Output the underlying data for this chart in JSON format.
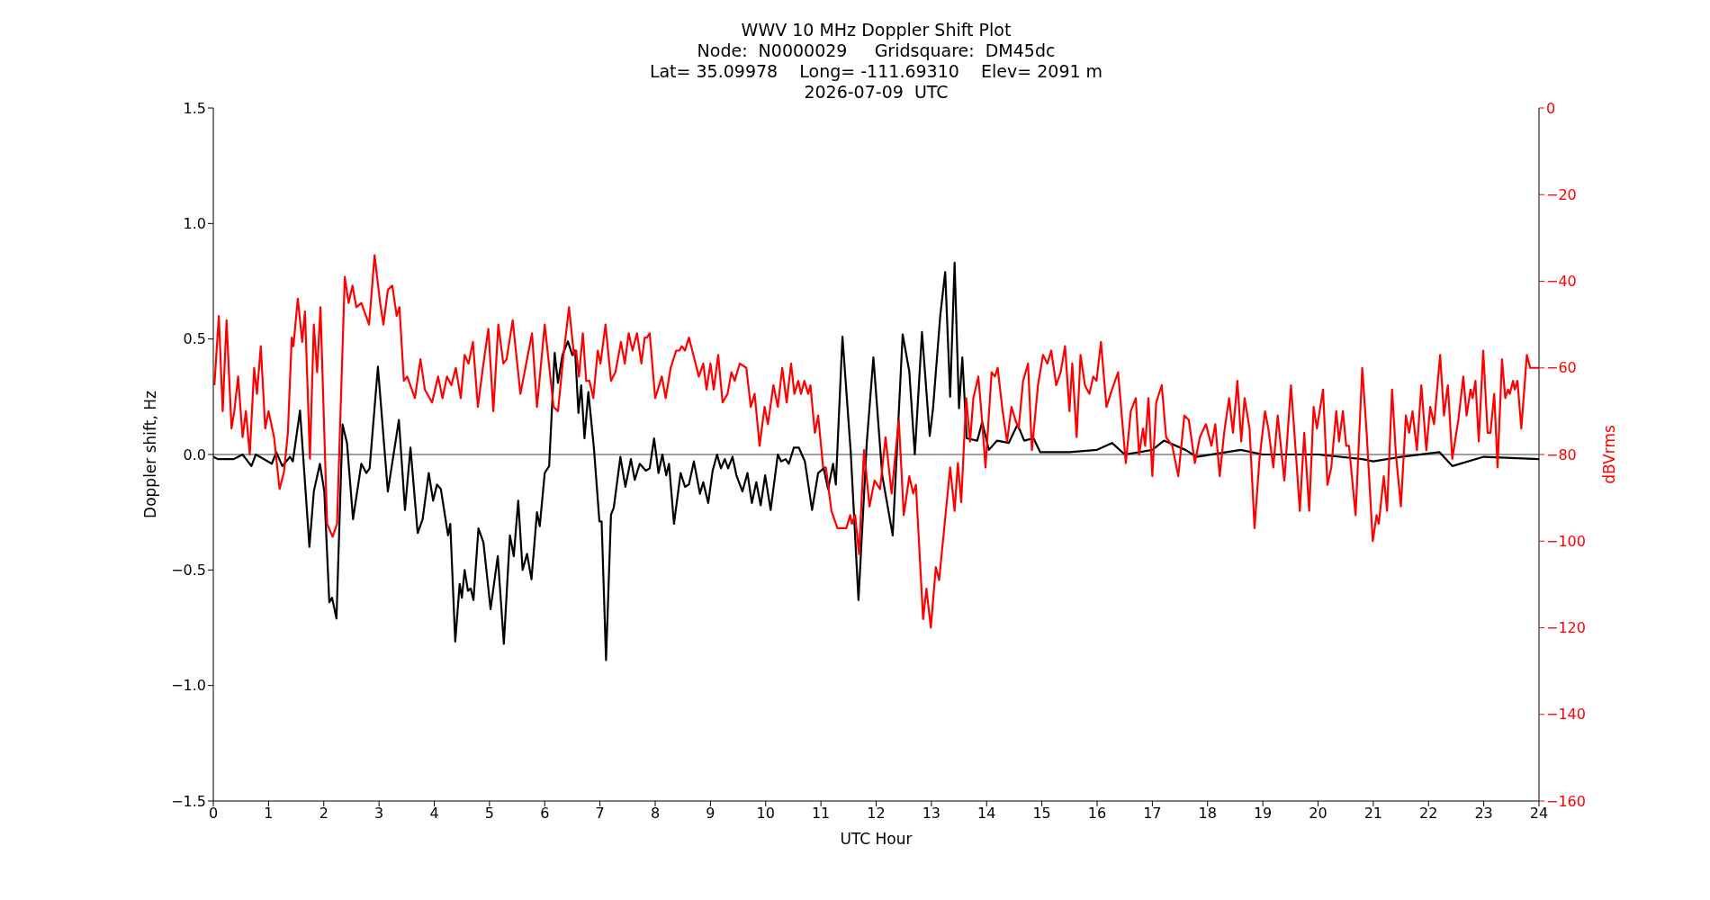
{
  "chart_data": {
    "type": "line",
    "title": "WWV 10 MHz Doppler Shift Plot\nNode:  N0000029     Gridsquare:  DM45dc\nLat= 35.09978    Long= -111.69310    Elev= 2091 m\n2026-07-09  UTC",
    "xlabel": "UTC Hour",
    "ylabel": "Doppler shift, Hz",
    "y2label": "dBVrms",
    "xlim": [
      0,
      24
    ],
    "xticks": [
      0,
      1,
      2,
      3,
      4,
      5,
      6,
      7,
      8,
      9,
      10,
      11,
      12,
      13,
      14,
      15,
      16,
      17,
      18,
      19,
      20,
      21,
      22,
      23,
      24
    ],
    "ylim": [
      -1.5,
      1.5
    ],
    "yticks": [
      {
        "value": -1.5,
        "label": "−1.5"
      },
      {
        "value": -1,
        "label": "−1.0"
      },
      {
        "value": -0.5,
        "label": "−0.5"
      },
      {
        "value": 0,
        "label": "0.0"
      },
      {
        "value": 0.5,
        "label": "0.5"
      },
      {
        "value": 1,
        "label": "1.0"
      },
      {
        "value": 1.5,
        "label": "1.5"
      }
    ],
    "y2lim": [
      -160,
      0
    ],
    "y2ticks": [
      {
        "value": -160,
        "label": "−160"
      },
      {
        "value": -140,
        "label": "−140"
      },
      {
        "value": -120,
        "label": "−120"
      },
      {
        "value": -100,
        "label": "−100"
      },
      {
        "value": -80,
        "label": "−80"
      },
      {
        "value": -60,
        "label": "−60"
      },
      {
        "value": -40,
        "label": "−40"
      },
      {
        "value": -20,
        "label": "−20"
      },
      0
    ],
    "ref_lines": [
      {
        "axis": "y",
        "value": 0,
        "color": "#808080"
      }
    ],
    "series": [
      {
        "color": "#000000",
        "x": [
          0,
          0.08,
          0.37,
          0.53,
          0.69,
          0.77,
          1.06,
          1.14,
          1.25,
          1.39,
          1.44,
          1.57,
          1.74,
          1.82,
          1.93,
          2.01,
          2.1,
          2.15,
          2.23,
          2.34,
          2.42,
          2.53,
          2.68,
          2.77,
          2.83,
          2.98,
          3.16,
          3.36,
          3.47,
          3.57,
          3.7,
          3.79,
          3.9,
          3.98,
          4.05,
          4.12,
          4.25,
          4.29,
          4.38,
          4.46,
          4.5,
          4.55,
          4.61,
          4.66,
          4.71,
          4.8,
          4.89,
          5.02,
          5.15,
          5.26,
          5.37,
          5.44,
          5.52,
          5.6,
          5.68,
          5.76,
          5.86,
          5.91,
          6.0,
          6.08,
          6.18,
          6.24,
          6.32,
          6.42,
          6.5,
          6.55,
          6.61,
          6.66,
          6.72,
          6.79,
          6.89,
          6.99,
          7.03,
          7.11,
          7.2,
          7.25,
          7.37,
          7.46,
          7.56,
          7.63,
          7.72,
          7.83,
          7.9,
          7.98,
          8.06,
          8.13,
          8.2,
          8.25,
          8.34,
          8.46,
          8.54,
          8.61,
          8.7,
          8.81,
          8.87,
          8.96,
          9.04,
          9.12,
          9.19,
          9.26,
          9.32,
          9.4,
          9.47,
          9.58,
          9.67,
          9.75,
          9.83,
          9.91,
          9.99,
          10.09,
          10.22,
          10.28,
          10.36,
          10.42,
          10.51,
          10.6,
          10.71,
          10.84,
          10.95,
          11.05,
          11.13,
          11.22,
          11.27,
          11.39,
          11.54,
          11.68,
          11.83,
          11.95,
          12.11,
          12.3,
          12.48,
          12.6,
          12.7,
          12.83,
          12.97,
          13.03,
          13.16,
          13.25,
          13.34,
          13.42,
          13.5,
          13.56,
          13.64,
          13.83,
          13.92,
          14.04,
          14.19,
          14.4,
          14.56,
          14.68,
          14.85,
          14.97,
          15.5,
          16.0,
          16.27,
          16.5,
          17.0,
          17.21,
          17.6,
          17.8,
          18.6,
          19.0,
          20.0,
          20.8,
          21.0,
          21.5,
          22.2,
          22.43,
          23.0,
          24
        ],
        "values": [
          -0.01,
          -0.02,
          -0.02,
          0.0,
          -0.05,
          0.0,
          -0.04,
          0.01,
          -0.05,
          -0.01,
          -0.03,
          0.19,
          -0.4,
          -0.16,
          -0.04,
          -0.16,
          -0.64,
          -0.62,
          -0.71,
          0.13,
          0.05,
          -0.28,
          -0.04,
          -0.08,
          -0.06,
          0.38,
          -0.16,
          0.15,
          -0.24,
          0.03,
          -0.34,
          -0.28,
          -0.08,
          -0.2,
          -0.13,
          -0.15,
          -0.35,
          -0.3,
          -0.81,
          -0.56,
          -0.62,
          -0.5,
          -0.59,
          -0.58,
          -0.63,
          -0.32,
          -0.38,
          -0.67,
          -0.44,
          -0.82,
          -0.35,
          -0.44,
          -0.2,
          -0.5,
          -0.43,
          -0.54,
          -0.25,
          -0.31,
          -0.08,
          -0.05,
          0.44,
          0.31,
          0.43,
          0.49,
          0.43,
          0.45,
          0.18,
          0.3,
          0.07,
          0.27,
          0.03,
          -0.29,
          -0.29,
          -0.89,
          -0.26,
          -0.23,
          -0.01,
          -0.14,
          -0.02,
          -0.11,
          -0.04,
          -0.07,
          -0.06,
          0.07,
          -0.08,
          0.0,
          -0.09,
          -0.04,
          -0.3,
          -0.08,
          -0.14,
          -0.13,
          -0.03,
          -0.17,
          -0.12,
          -0.21,
          -0.07,
          0.0,
          -0.06,
          -0.02,
          -0.06,
          -0.01,
          -0.09,
          -0.16,
          -0.08,
          -0.21,
          -0.12,
          -0.22,
          -0.09,
          -0.24,
          0.0,
          -0.03,
          -0.02,
          -0.04,
          0.03,
          0.03,
          -0.03,
          -0.24,
          -0.08,
          -0.06,
          -0.15,
          -0.04,
          -0.13,
          0.51,
          0.01,
          -0.63,
          0.05,
          0.42,
          -0.09,
          -0.35,
          0.52,
          0.36,
          0.0,
          0.53,
          0.08,
          0.2,
          0.6,
          0.79,
          0.25,
          0.83,
          0.2,
          0.42,
          0.07,
          0.06,
          0.14,
          0.02,
          0.06,
          0.05,
          0.13,
          0.06,
          0.07,
          0.01,
          0.01,
          0.02,
          0.05,
          0.0,
          0.02,
          0.06,
          0.02,
          -0.01,
          0.02,
          0.0,
          0.0,
          -0.02,
          -0.03,
          -0.01,
          0.01,
          -0.05,
          -0.01,
          -0.02
        ]
      },
      {
        "color": "#ff0000",
        "axis": "y2",
        "x": [
          0.02,
          0.1,
          0.17,
          0.24,
          0.33,
          0.38,
          0.45,
          0.53,
          0.59,
          0.66,
          0.74,
          0.79,
          0.86,
          0.94,
          1.0,
          1.1,
          1.2,
          1.28,
          1.35,
          1.42,
          1.45,
          1.53,
          1.61,
          1.66,
          1.75,
          1.82,
          1.88,
          1.94,
          2.06,
          2.16,
          2.24,
          2.38,
          2.45,
          2.52,
          2.59,
          2.68,
          2.82,
          2.92,
          3.02,
          3.08,
          3.16,
          3.24,
          3.32,
          3.37,
          3.45,
          3.51,
          3.65,
          3.75,
          3.83,
          3.96,
          4.07,
          4.15,
          4.23,
          4.31,
          4.39,
          4.48,
          4.55,
          4.62,
          4.7,
          4.79,
          4.88,
          4.98,
          5.07,
          5.16,
          5.25,
          5.31,
          5.42,
          5.56,
          5.65,
          5.77,
          5.86,
          6.0,
          6.16,
          6.24,
          6.34,
          6.44,
          6.53,
          6.57,
          6.62,
          6.69,
          6.75,
          6.81,
          6.88,
          6.96,
          7.01,
          7.1,
          7.2,
          7.28,
          7.38,
          7.45,
          7.52,
          7.59,
          7.67,
          7.75,
          7.81,
          7.85,
          7.9,
          8.0,
          8.12,
          8.19,
          8.28,
          8.38,
          8.44,
          8.48,
          8.54,
          8.61,
          8.69,
          8.79,
          8.87,
          8.93,
          9.0,
          9.06,
          9.14,
          9.22,
          9.31,
          9.38,
          9.44,
          9.53,
          9.65,
          9.73,
          9.8,
          9.89,
          9.98,
          10.04,
          10.14,
          10.22,
          10.3,
          10.38,
          10.46,
          10.52,
          10.59,
          10.64,
          10.7,
          10.77,
          10.81,
          10.89,
          10.95,
          11.04,
          11.09,
          11.19,
          11.3,
          11.39,
          11.46,
          11.53,
          11.56,
          11.62,
          11.69,
          11.78,
          11.88,
          11.97,
          12.07,
          12.17,
          12.28,
          12.41,
          12.5,
          12.6,
          12.67,
          12.72,
          12.85,
          12.91,
          12.99,
          13.08,
          13.14,
          13.24,
          13.34,
          13.42,
          13.48,
          13.54,
          13.63,
          13.7,
          13.76,
          13.85,
          13.91,
          13.98,
          14.09,
          14.15,
          14.2,
          14.29,
          14.37,
          14.45,
          14.52,
          14.58,
          14.66,
          14.75,
          14.82,
          14.93,
          15.02,
          15.1,
          15.17,
          15.26,
          15.34,
          15.42,
          15.5,
          15.55,
          15.63,
          15.7,
          15.78,
          15.86,
          15.93,
          15.99,
          16.07,
          16.17,
          16.27,
          16.38,
          16.52,
          16.61,
          16.7,
          16.76,
          16.83,
          16.87,
          16.93,
          17.0,
          17.07,
          17.17,
          17.25,
          17.36,
          17.47,
          17.58,
          17.66,
          17.77,
          17.86,
          17.97,
          18.07,
          18.14,
          18.22,
          18.3,
          18.39,
          18.46,
          18.54,
          18.61,
          18.67,
          18.76,
          18.85,
          18.94,
          19.04,
          19.1,
          19.19,
          19.27,
          19.39,
          19.51,
          19.6,
          19.67,
          19.75,
          19.84,
          19.92,
          19.98,
          20.09,
          20.17,
          20.24,
          20.33,
          20.38,
          20.45,
          20.51,
          20.56,
          20.68,
          20.8,
          20.88,
          20.99,
          21.06,
          21.1,
          21.19,
          21.25,
          21.34,
          21.41,
          21.5,
          21.59,
          21.65,
          21.71,
          21.79,
          21.87,
          21.96,
          22.03,
          22.1,
          22.21,
          22.28,
          22.35,
          22.43,
          22.54,
          22.63,
          22.69,
          22.76,
          22.8,
          22.85,
          22.91,
          22.99,
          23.07,
          23.12,
          23.19,
          23.25,
          23.33,
          23.39,
          23.44,
          23.47,
          23.53,
          23.56,
          23.61,
          23.68,
          23.78,
          23.84,
          24
        ],
        "values": [
          -64,
          -48,
          -70,
          -49,
          -74,
          -70,
          -62,
          -76,
          -70,
          -80,
          -60,
          -66,
          -55,
          -74,
          -70,
          -76,
          -88,
          -84,
          -75,
          -53,
          -55,
          -44,
          -54,
          -47,
          -81,
          -50,
          -61,
          -46,
          -96,
          -99,
          -96,
          -39,
          -45,
          -41,
          -46,
          -45,
          -50,
          -34,
          -45,
          -50,
          -42,
          -41,
          -48,
          -46,
          -63,
          -62,
          -67,
          -58,
          -65,
          -68,
          -62,
          -67,
          -62,
          -64,
          -60,
          -67,
          -57,
          -59,
          -54,
          -69,
          -60,
          -51,
          -70,
          -50,
          -59,
          -58,
          -49,
          -66,
          -60,
          -52,
          -69,
          -50,
          -69,
          -70,
          -57,
          -46,
          -57,
          -56,
          -62,
          -52,
          -63,
          -63,
          -67,
          -56,
          -59,
          -50,
          -63,
          -61,
          -54,
          -59,
          -52,
          -56,
          -52,
          -59,
          -53,
          -53,
          -52,
          -67,
          -62,
          -67,
          -60,
          -56,
          -56,
          -55,
          -56,
          -53,
          -57,
          -62,
          -59,
          -65,
          -59,
          -65,
          -57,
          -68,
          -66,
          -61,
          -63,
          -59,
          -60,
          -69,
          -66,
          -78,
          -69,
          -73,
          -64,
          -69,
          -60,
          -68,
          -59,
          -66,
          -63,
          -66,
          -63,
          -66,
          -64,
          -75,
          -71,
          -83,
          -83,
          -93,
          -97,
          -97,
          -97,
          -94,
          -96,
          -94,
          -103,
          -79,
          -92,
          -86,
          -88,
          -76,
          -89,
          -72,
          -94,
          -85,
          -89,
          -87,
          -118,
          -111,
          -120,
          -106,
          -109,
          -96,
          -83,
          -93,
          -82,
          -91,
          -67,
          -77,
          -67,
          -62,
          -71,
          -83,
          -61,
          -62,
          -60,
          -70,
          -77,
          -69,
          -72,
          -74,
          -63,
          -59,
          -79,
          -64,
          -57,
          -59,
          -56,
          -64,
          -61,
          -55,
          -70,
          -59,
          -76,
          -57,
          -64,
          -66,
          -62,
          -63,
          -54,
          -69,
          -65,
          -61,
          -82,
          -70,
          -67,
          -80,
          -74,
          -78,
          -67,
          -85,
          -68,
          -64,
          -76,
          -78,
          -85,
          -71,
          -72,
          -82,
          -76,
          -73,
          -78,
          -73,
          -85,
          -75,
          -67,
          -75,
          -63,
          -77,
          -67,
          -74,
          -97,
          -81,
          -70,
          -74,
          -83,
          -71,
          -86,
          -64,
          -80,
          -93,
          -75,
          -93,
          -69,
          -74,
          -65,
          -87,
          -83,
          -70,
          -77,
          -70,
          -78,
          -78,
          -94,
          -60,
          -75,
          -100,
          -94,
          -96,
          -85,
          -93,
          -65,
          -80,
          -92,
          -71,
          -75,
          -70,
          -79,
          -64,
          -79,
          -69,
          -73,
          -57,
          -71,
          -64,
          -81,
          -72,
          -62,
          -71,
          -65,
          -67,
          -63,
          -77,
          -56,
          -75,
          -75,
          -66,
          -83,
          -58,
          -67,
          -65,
          -66,
          -63,
          -65,
          -63,
          -74,
          -57,
          -60,
          -60
        ]
      }
    ]
  }
}
